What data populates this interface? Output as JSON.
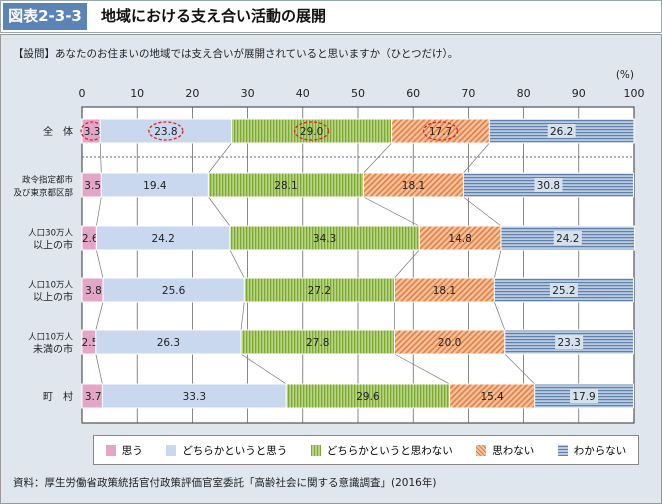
{
  "header": {
    "figure_number": "図表2-3-3",
    "title": "地域における支え合い活動の展開"
  },
  "question": "【設問】あなたのお住まいの地域では支え合いが展開されていると思いますか（ひとつだけ）。",
  "source": "資料：厚生労働省政策統括官付政策評価官室委託「高齢社会に関する意識調査」(2016年)",
  "chart_data": {
    "type": "bar",
    "stacked": true,
    "orientation": "horizontal",
    "unit_label": "(%)",
    "xlim": [
      0,
      100
    ],
    "x_ticks": [
      "0",
      "10",
      "20",
      "30",
      "40",
      "50",
      "60",
      "70",
      "80",
      "90",
      "100"
    ],
    "categories": [
      "全　体",
      "政令指定都市\n及び東京都区部",
      "人口30万人\n以上の市",
      "人口10万人\n以上の市",
      "人口10万人\n未満の市",
      "町　村"
    ],
    "series": [
      {
        "name": "思う",
        "color": "#e3a6c6",
        "values": [
          3.3,
          3.5,
          2.6,
          3.8,
          2.5,
          3.7
        ]
      },
      {
        "name": "どちらかというと思う",
        "color": "#c9d8ef",
        "values": [
          23.8,
          19.4,
          24.2,
          25.6,
          26.3,
          33.3
        ]
      },
      {
        "name": "どちらかというと思わない",
        "color": "#9cc255",
        "values": [
          29.0,
          28.1,
          34.3,
          27.2,
          27.8,
          29.6
        ]
      },
      {
        "name": "思わない",
        "color": "#ee9a66",
        "values": [
          17.7,
          18.1,
          14.8,
          18.1,
          20.0,
          15.4
        ]
      },
      {
        "name": "わからない",
        "color": "#8aa6c8",
        "values": [
          26.2,
          30.8,
          24.2,
          25.2,
          23.3,
          17.9
        ]
      }
    ],
    "legend_position": "bottom"
  }
}
